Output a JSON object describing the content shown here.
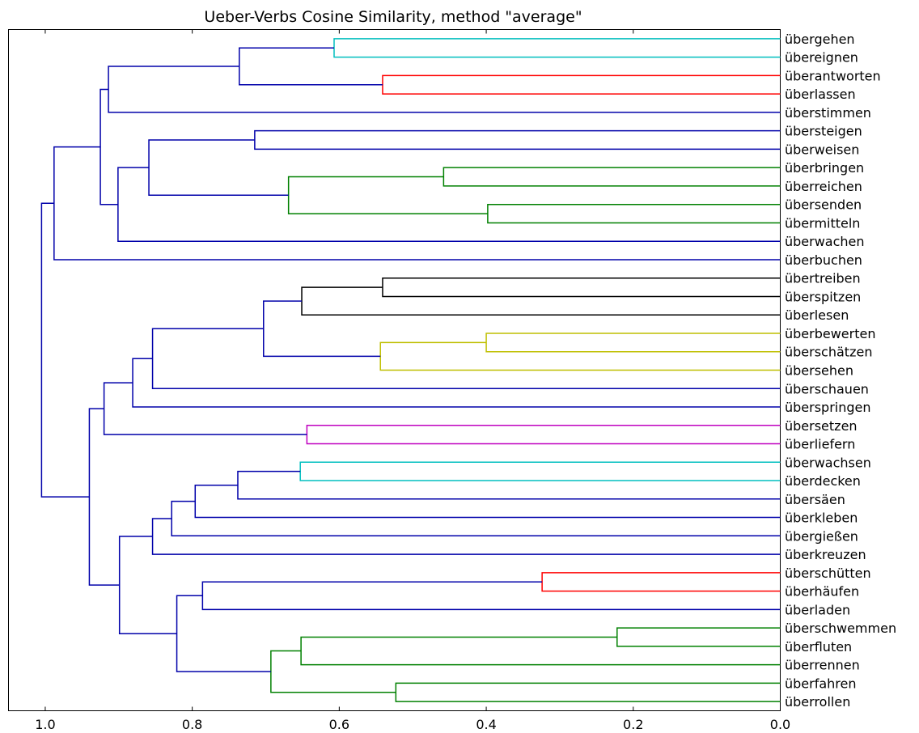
{
  "chart_data": {
    "type": "dendrogram",
    "title": "Ueber-Verbs Cosine Similarity, method \"average\"",
    "orientation": "left",
    "xlim": [
      1.05,
      0.0
    ],
    "xticks": [
      {
        "value": 1.0,
        "label": "1.0"
      },
      {
        "value": 0.8,
        "label": "0.8"
      },
      {
        "value": 0.6,
        "label": "0.6"
      },
      {
        "value": 0.4,
        "label": "0.4"
      },
      {
        "value": 0.2,
        "label": "0.2"
      },
      {
        "value": 0.0,
        "label": "0.0"
      }
    ],
    "leaves": [
      "übergehen",
      "übereignen",
      "überantworten",
      "überlassen",
      "überstimmen",
      "übersteigen",
      "überweisen",
      "überbringen",
      "überreichen",
      "übersenden",
      "übermitteln",
      "überwachen",
      "überbuchen",
      "übertreiben",
      "überspitzen",
      "überlesen",
      "überbewerten",
      "überschätzen",
      "übersehen",
      "überschauen",
      "überspringen",
      "übersetzen",
      "überliefern",
      "überwachsen",
      "überdecken",
      "übersäen",
      "überkleben",
      "übergießen",
      "überkreuzen",
      "überschütten",
      "überhäufen",
      "überladen",
      "überschwemmen",
      "überfluten",
      "überrennen",
      "überfahren",
      "überrollen"
    ],
    "links": [
      {
        "left": "L0",
        "right": "L1",
        "height": 0.607,
        "color": "#00bfbf"
      },
      {
        "left": "L2",
        "right": "L3",
        "height": 0.541,
        "color": "#ff0000"
      },
      {
        "left": "M0",
        "right": "M1",
        "height": 0.736,
        "color": "#0000aa"
      },
      {
        "left": "M2",
        "right": "L4",
        "height": 0.914,
        "color": "#0000aa"
      },
      {
        "left": "L5",
        "right": "L6",
        "height": 0.715,
        "color": "#0000aa"
      },
      {
        "left": "L7",
        "right": "L8",
        "height": 0.458,
        "color": "#008000"
      },
      {
        "left": "L9",
        "right": "L10",
        "height": 0.398,
        "color": "#008000"
      },
      {
        "left": "M5",
        "right": "M6",
        "height": 0.669,
        "color": "#008000"
      },
      {
        "left": "M4",
        "right": "M7",
        "height": 0.859,
        "color": "#0000aa"
      },
      {
        "left": "M8",
        "right": "L11",
        "height": 0.901,
        "color": "#0000aa"
      },
      {
        "left": "M3",
        "right": "M9",
        "height": 0.925,
        "color": "#0000aa"
      },
      {
        "left": "M10",
        "right": "L12",
        "height": 0.988,
        "color": "#0000aa"
      },
      {
        "left": "L13",
        "right": "L14",
        "height": 0.541,
        "color": "#000000"
      },
      {
        "left": "M12",
        "right": "L15",
        "height": 0.651,
        "color": "#000000"
      },
      {
        "left": "L16",
        "right": "L17",
        "height": 0.4,
        "color": "#bfbf00"
      },
      {
        "left": "M14",
        "right": "L18",
        "height": 0.544,
        "color": "#bfbf00"
      },
      {
        "left": "M13",
        "right": "M15",
        "height": 0.703,
        "color": "#0000aa"
      },
      {
        "left": "M16",
        "right": "L19",
        "height": 0.854,
        "color": "#0000aa"
      },
      {
        "left": "M17",
        "right": "L20",
        "height": 0.881,
        "color": "#0000aa"
      },
      {
        "left": "L21",
        "right": "L22",
        "height": 0.644,
        "color": "#bf00bf"
      },
      {
        "left": "M18",
        "right": "M19",
        "height": 0.92,
        "color": "#0000aa"
      },
      {
        "left": "L23",
        "right": "L24",
        "height": 0.653,
        "color": "#00bfbf"
      },
      {
        "left": "M21",
        "right": "L25",
        "height": 0.738,
        "color": "#0000aa"
      },
      {
        "left": "M22",
        "right": "L26",
        "height": 0.796,
        "color": "#0000aa"
      },
      {
        "left": "M23",
        "right": "L27",
        "height": 0.828,
        "color": "#0000aa"
      },
      {
        "left": "M24",
        "right": "L28",
        "height": 0.854,
        "color": "#0000aa"
      },
      {
        "left": "L29",
        "right": "L30",
        "height": 0.324,
        "color": "#ff0000"
      },
      {
        "left": "M26",
        "right": "L31",
        "height": 0.786,
        "color": "#0000aa"
      },
      {
        "left": "L32",
        "right": "L33",
        "height": 0.222,
        "color": "#008000"
      },
      {
        "left": "M28",
        "right": "L34",
        "height": 0.652,
        "color": "#008000"
      },
      {
        "left": "L35",
        "right": "L36",
        "height": 0.523,
        "color": "#008000"
      },
      {
        "left": "M29",
        "right": "M30",
        "height": 0.693,
        "color": "#008000"
      },
      {
        "left": "M27",
        "right": "M31",
        "height": 0.821,
        "color": "#0000aa"
      },
      {
        "left": "M25",
        "right": "M32",
        "height": 0.899,
        "color": "#0000aa"
      },
      {
        "left": "M20",
        "right": "M33",
        "height": 0.94,
        "color": "#0000aa"
      },
      {
        "left": "M11",
        "right": "M34",
        "height": 1.005,
        "color": "#0000aa"
      }
    ]
  }
}
